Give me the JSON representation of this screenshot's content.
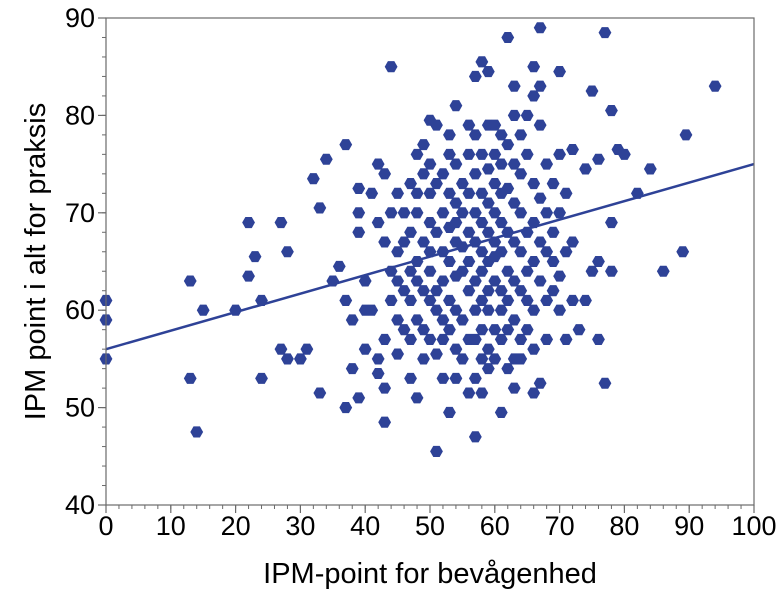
{
  "chart_data": {
    "type": "scatter",
    "xlabel": "IPM-point for bevågenhed",
    "ylabel": "IPM point i alt for praksis",
    "xlim": [
      0,
      100
    ],
    "ylim": [
      40,
      90
    ],
    "x_ticks": [
      "0",
      "10",
      "20",
      "30",
      "40",
      "50",
      "60",
      "70",
      "80",
      "90",
      "100"
    ],
    "y_ticks": [
      "40",
      "50",
      "60",
      "70",
      "80",
      "90"
    ],
    "grid": false,
    "legend": "none",
    "marker_color": "#2E4297",
    "line_color": "#2E4297",
    "trend_line": {
      "x": [
        0,
        100
      ],
      "y": [
        56,
        75
      ]
    },
    "points": [
      [
        0,
        61
      ],
      [
        0,
        59
      ],
      [
        0,
        55
      ],
      [
        13,
        63
      ],
      [
        13,
        53
      ],
      [
        14,
        47.5
      ],
      [
        15,
        60
      ],
      [
        20,
        60
      ],
      [
        22,
        69
      ],
      [
        22,
        63.5
      ],
      [
        23,
        65.5
      ],
      [
        24,
        53
      ],
      [
        24,
        61
      ],
      [
        27,
        69
      ],
      [
        27,
        56
      ],
      [
        28,
        66
      ],
      [
        28,
        55
      ],
      [
        30,
        55
      ],
      [
        31,
        56
      ],
      [
        32,
        73.5
      ],
      [
        33,
        70.5
      ],
      [
        33,
        51.5
      ],
      [
        34,
        75.5
      ],
      [
        35,
        63
      ],
      [
        36,
        64.5
      ],
      [
        37,
        77
      ],
      [
        37,
        61
      ],
      [
        37,
        50
      ],
      [
        38,
        59
      ],
      [
        38,
        54
      ],
      [
        39,
        72.5
      ],
      [
        39,
        70
      ],
      [
        39,
        68
      ],
      [
        39,
        51
      ],
      [
        40,
        63
      ],
      [
        40,
        60
      ],
      [
        40,
        56
      ],
      [
        41,
        72
      ],
      [
        41,
        60
      ],
      [
        42,
        75
      ],
      [
        42,
        69
      ],
      [
        42,
        55
      ],
      [
        42,
        53.5
      ],
      [
        43,
        74
      ],
      [
        43,
        67
      ],
      [
        43,
        57
      ],
      [
        43,
        52
      ],
      [
        43,
        48.5
      ],
      [
        44,
        85
      ],
      [
        44,
        70
      ],
      [
        44,
        64
      ],
      [
        44,
        61
      ],
      [
        45,
        72
      ],
      [
        45,
        66
      ],
      [
        45,
        63
      ],
      [
        45,
        59
      ],
      [
        45,
        55.5
      ],
      [
        46,
        70
      ],
      [
        46,
        67
      ],
      [
        46,
        62
      ],
      [
        46,
        58
      ],
      [
        47,
        73
      ],
      [
        47,
        68
      ],
      [
        47,
        64
      ],
      [
        47,
        61
      ],
      [
        47,
        57
      ],
      [
        47,
        53
      ],
      [
        48,
        76
      ],
      [
        48,
        72
      ],
      [
        48,
        70
      ],
      [
        48,
        65
      ],
      [
        48,
        63
      ],
      [
        48,
        59
      ],
      [
        48,
        51
      ],
      [
        49,
        77
      ],
      [
        49,
        74
      ],
      [
        49,
        67
      ],
      [
        49,
        62
      ],
      [
        49,
        58
      ],
      [
        49,
        55
      ],
      [
        50,
        79.5
      ],
      [
        50,
        75
      ],
      [
        50,
        72
      ],
      [
        50,
        69
      ],
      [
        50,
        66
      ],
      [
        50,
        64
      ],
      [
        50,
        61
      ],
      [
        50,
        57
      ],
      [
        51,
        79
      ],
      [
        51,
        73
      ],
      [
        51,
        68
      ],
      [
        51,
        62
      ],
      [
        51,
        60
      ],
      [
        51,
        55.5
      ],
      [
        51,
        45.5
      ],
      [
        52,
        74
      ],
      [
        52,
        70
      ],
      [
        52,
        66
      ],
      [
        52,
        63
      ],
      [
        52,
        59
      ],
      [
        52,
        57
      ],
      [
        52,
        53
      ],
      [
        53,
        78
      ],
      [
        53,
        76
      ],
      [
        53,
        72
      ],
      [
        53,
        68.5
      ],
      [
        53,
        65
      ],
      [
        53,
        61
      ],
      [
        53,
        58
      ],
      [
        53,
        49.5
      ],
      [
        54,
        81
      ],
      [
        54,
        75
      ],
      [
        54,
        71
      ],
      [
        54,
        69
      ],
      [
        54,
        67
      ],
      [
        54,
        63.5
      ],
      [
        54,
        60
      ],
      [
        54,
        56
      ],
      [
        54,
        53
      ],
      [
        55,
        73
      ],
      [
        55,
        70
      ],
      [
        55,
        66.5
      ],
      [
        55,
        64
      ],
      [
        55,
        59
      ],
      [
        55,
        55
      ],
      [
        56,
        79
      ],
      [
        56,
        76
      ],
      [
        56,
        72
      ],
      [
        56,
        68
      ],
      [
        56,
        65
      ],
      [
        56,
        62
      ],
      [
        56,
        57
      ],
      [
        56,
        51.5
      ],
      [
        57,
        84
      ],
      [
        57,
        78
      ],
      [
        57,
        74
      ],
      [
        57,
        70
      ],
      [
        57,
        67
      ],
      [
        57,
        63
      ],
      [
        57,
        60
      ],
      [
        57,
        57
      ],
      [
        57,
        53
      ],
      [
        57,
        47
      ],
      [
        58,
        85.5
      ],
      [
        58,
        76
      ],
      [
        58,
        72
      ],
      [
        58,
        69
      ],
      [
        58,
        66
      ],
      [
        58,
        64
      ],
      [
        58,
        61
      ],
      [
        58,
        58
      ],
      [
        58,
        55
      ],
      [
        58,
        51.5
      ],
      [
        59,
        84.5
      ],
      [
        59,
        79
      ],
      [
        59,
        74.5
      ],
      [
        59,
        71
      ],
      [
        59,
        68
      ],
      [
        59,
        65
      ],
      [
        59,
        62
      ],
      [
        59,
        60
      ],
      [
        59,
        56
      ],
      [
        59,
        54
      ],
      [
        60,
        79
      ],
      [
        60,
        76
      ],
      [
        60,
        73
      ],
      [
        60,
        70
      ],
      [
        60,
        67
      ],
      [
        60,
        65.5
      ],
      [
        60,
        63
      ],
      [
        60,
        58
      ],
      [
        60,
        55
      ],
      [
        61,
        78
      ],
      [
        61,
        75
      ],
      [
        61,
        72
      ],
      [
        61,
        69
      ],
      [
        61,
        66
      ],
      [
        61,
        62
      ],
      [
        61,
        60
      ],
      [
        61,
        57
      ],
      [
        61,
        49.5
      ],
      [
        62,
        88
      ],
      [
        62,
        77
      ],
      [
        62,
        72.5
      ],
      [
        62,
        68
      ],
      [
        62,
        64
      ],
      [
        62,
        61
      ],
      [
        62,
        58
      ],
      [
        62,
        54
      ],
      [
        63,
        83
      ],
      [
        63,
        80
      ],
      [
        63,
        75
      ],
      [
        63,
        71
      ],
      [
        63,
        67
      ],
      [
        63,
        63
      ],
      [
        63,
        59
      ],
      [
        63,
        55
      ],
      [
        63,
        52
      ],
      [
        64,
        78
      ],
      [
        64,
        74
      ],
      [
        64,
        70
      ],
      [
        64,
        66
      ],
      [
        64,
        62
      ],
      [
        64,
        57
      ],
      [
        64,
        55
      ],
      [
        65,
        80
      ],
      [
        65,
        76
      ],
      [
        65,
        68
      ],
      [
        65,
        64
      ],
      [
        65,
        61
      ],
      [
        65,
        58
      ],
      [
        66,
        85
      ],
      [
        66,
        82
      ],
      [
        66,
        73
      ],
      [
        66,
        69
      ],
      [
        66,
        65
      ],
      [
        66,
        60
      ],
      [
        66,
        56
      ],
      [
        66,
        51.5
      ],
      [
        67,
        89
      ],
      [
        67,
        83
      ],
      [
        67,
        79
      ],
      [
        67,
        71.5
      ],
      [
        67,
        67
      ],
      [
        67,
        63
      ],
      [
        67,
        52.5
      ],
      [
        68,
        75
      ],
      [
        68,
        70
      ],
      [
        68,
        66
      ],
      [
        68,
        61
      ],
      [
        68,
        57
      ],
      [
        69,
        73
      ],
      [
        69,
        68
      ],
      [
        69,
        65
      ],
      [
        69,
        62
      ],
      [
        70,
        84.5
      ],
      [
        70,
        76
      ],
      [
        70,
        70
      ],
      [
        70,
        63.5
      ],
      [
        70,
        60
      ],
      [
        71,
        72
      ],
      [
        71,
        66
      ],
      [
        71,
        57
      ],
      [
        72,
        76.5
      ],
      [
        72,
        67
      ],
      [
        72,
        61
      ],
      [
        73,
        58
      ],
      [
        74,
        74.5
      ],
      [
        74,
        61
      ],
      [
        75,
        82.5
      ],
      [
        75,
        64
      ],
      [
        76,
        75.5
      ],
      [
        76,
        65
      ],
      [
        76,
        57
      ],
      [
        77,
        88.5
      ],
      [
        77,
        52.5
      ],
      [
        78,
        80.5
      ],
      [
        78,
        69
      ],
      [
        78,
        64
      ],
      [
        79,
        76.5
      ],
      [
        80,
        76
      ],
      [
        82,
        72
      ],
      [
        84,
        74.5
      ],
      [
        86,
        64
      ],
      [
        89,
        66
      ],
      [
        89.5,
        78
      ],
      [
        94,
        83
      ]
    ]
  }
}
